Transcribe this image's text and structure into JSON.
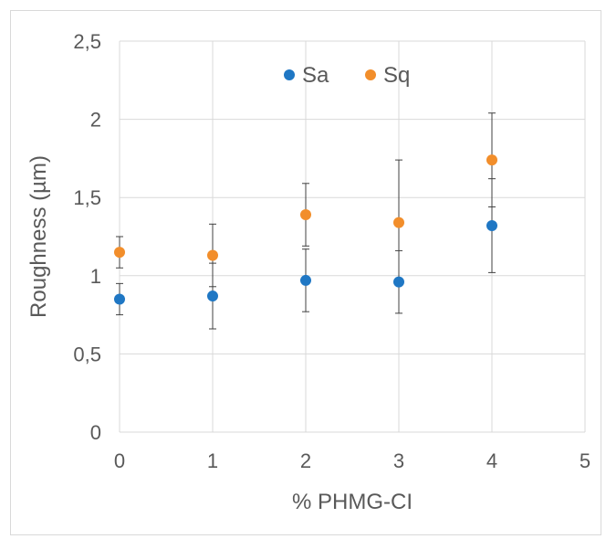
{
  "chart_data": {
    "type": "scatter",
    "xlabel": "% PHMG-CI",
    "ylabel": "Roughness (µm)",
    "xlim": [
      0,
      5
    ],
    "ylim": [
      0,
      2.5
    ],
    "x_ticks": [
      "0",
      "1",
      "2",
      "3",
      "4",
      "5"
    ],
    "y_ticks": [
      "0",
      "0,5",
      "1",
      "1,5",
      "2",
      "2,5"
    ],
    "grid": true,
    "legend_position": "top-center",
    "series": [
      {
        "name": "Sa",
        "color": "#1f77c4",
        "x": [
          0,
          1,
          2,
          3,
          4
        ],
        "y": [
          0.85,
          0.87,
          0.97,
          0.96,
          1.32
        ],
        "error": [
          0.1,
          0.21,
          0.2,
          0.2,
          0.3
        ]
      },
      {
        "name": "Sq",
        "color": "#f28e2b",
        "x": [
          0,
          1,
          2,
          3,
          4
        ],
        "y": [
          1.15,
          1.13,
          1.39,
          1.34,
          1.74
        ],
        "error": [
          0.1,
          0.2,
          0.2,
          0.4,
          0.3
        ]
      }
    ]
  }
}
